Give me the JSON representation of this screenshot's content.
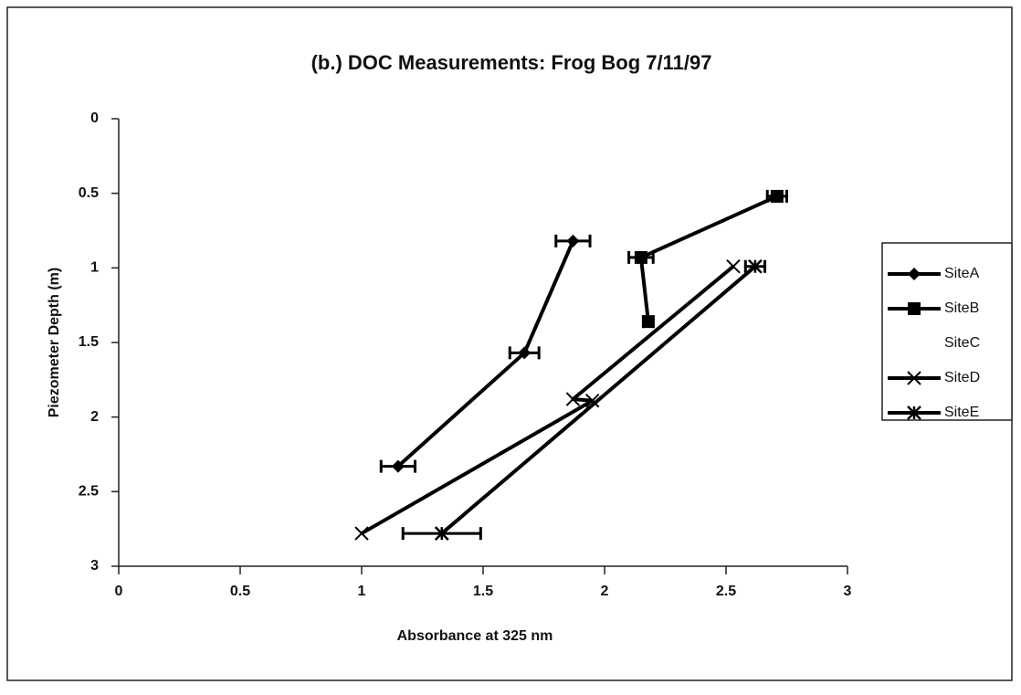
{
  "chart_data": {
    "type": "line",
    "title": "(b.) DOC Measurements: Frog Bog 7/11/97",
    "x_label": "Absorbance at 325 nm",
    "y_label": "Piezometer Depth (m)",
    "xlim": [
      0,
      3
    ],
    "ylim": [
      0,
      3
    ],
    "y_inverted": true,
    "xticks": [
      0,
      0.5,
      1,
      1.5,
      2,
      2.5,
      3
    ],
    "yticks": [
      0,
      0.5,
      1,
      1.5,
      2,
      2.5,
      3
    ],
    "grid": false,
    "legend": "right",
    "series": [
      {
        "name": "SiteA",
        "color": "#000000",
        "marker": "diamond",
        "x": [
          1.87,
          1.67,
          1.15
        ],
        "values": [
          0.82,
          1.57,
          2.33
        ],
        "errors": [
          0.07,
          0.06,
          0.07
        ]
      },
      {
        "name": "SiteB",
        "color": "#000000",
        "marker": "square",
        "x": [
          2.71,
          2.15,
          2.18
        ],
        "values": [
          0.52,
          0.93,
          1.36
        ],
        "errors": [
          0.04,
          0.05,
          0.02
        ]
      },
      {
        "name": "SiteC",
        "color": "#000000",
        "marker": "none",
        "x": [],
        "values": [],
        "errors": []
      },
      {
        "name": "SiteD",
        "color": "#000000",
        "marker": "x",
        "x": [
          2.53,
          1.87,
          1.95,
          1.0
        ],
        "values": [
          0.99,
          1.88,
          1.89,
          2.78
        ],
        "errors": [
          0,
          0,
          0,
          0
        ]
      },
      {
        "name": "SiteE",
        "color": "#000000",
        "marker": "star",
        "x": [
          2.62,
          1.33
        ],
        "values": [
          0.99,
          2.78
        ],
        "errors": [
          0.04,
          0.16
        ]
      }
    ]
  }
}
